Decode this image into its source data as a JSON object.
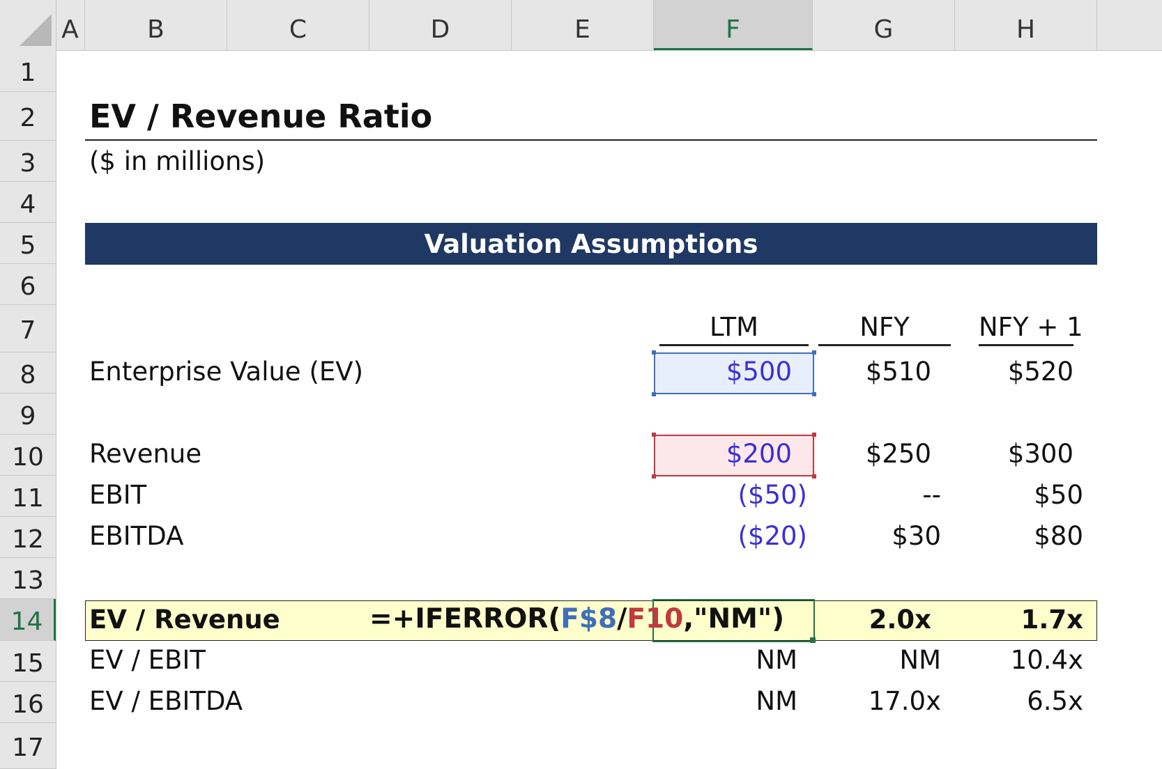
{
  "columns": [
    "A",
    "B",
    "C",
    "D",
    "E",
    "F",
    "G",
    "H"
  ],
  "active_column": "F",
  "rows": [
    "1",
    "2",
    "3",
    "4",
    "5",
    "6",
    "7",
    "8",
    "9",
    "10",
    "11",
    "12",
    "13",
    "14",
    "15",
    "16",
    "17"
  ],
  "active_row": "14",
  "title": "EV / Revenue Ratio",
  "subtitle": "($ in millions)",
  "banner": "Valuation Assumptions",
  "periods": [
    "LTM",
    "NFY",
    "NFY + 1"
  ],
  "lines": {
    "ev": {
      "label": "Enterprise Value (EV)",
      "values": [
        "$500",
        "$510",
        "$520"
      ]
    },
    "revenue": {
      "label": "Revenue",
      "values": [
        "$200",
        "$250",
        "$300"
      ]
    },
    "ebit": {
      "label": "EBIT",
      "values": [
        "($50)",
        "--",
        "$50"
      ]
    },
    "ebitda": {
      "label": "EBITDA",
      "values": [
        "($20)",
        "$30",
        "$80"
      ]
    }
  },
  "multiples": {
    "ev_revenue": {
      "label": "EV / Revenue",
      "values": [
        "",
        "2.0x",
        "1.7x"
      ]
    },
    "ev_ebit": {
      "label": "EV / EBIT",
      "values": [
        "NM",
        "NM",
        "10.4x"
      ]
    },
    "ev_ebitda": {
      "label": "EV / EBITDA",
      "values": [
        "NM",
        "17.0x",
        "6.5x"
      ]
    }
  },
  "formula": {
    "prefix": "=+IFERROR(",
    "ref1": "F$8",
    "slash": "/",
    "ref2": "F10",
    "suffix": ",\"NM\")"
  },
  "colors": {
    "banner": "#1f3864",
    "input_blue": "#3b2fd6",
    "ref_blue": "#3f6fb8",
    "ref_red": "#c0393f",
    "highlight_row": "#ffffcc",
    "excel_green": "#217346"
  }
}
